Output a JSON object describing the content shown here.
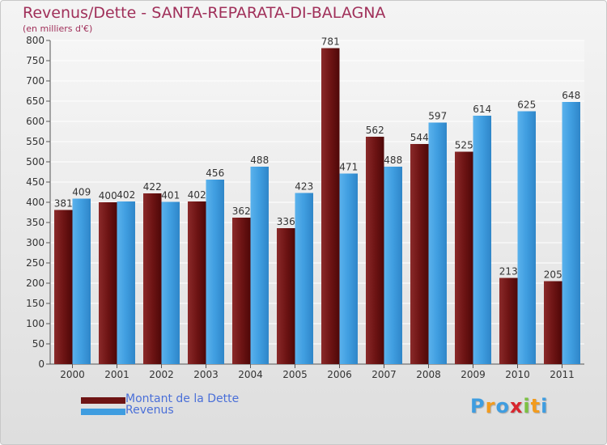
{
  "title": "Revenus/Dette - SANTA-REPARATA-DI-BALAGNA",
  "unit_label": "(en milliers d'€)",
  "colors": {
    "dette": "#6e1414",
    "revenus": "#3f9de0",
    "title": "#a0305a",
    "legend_text": "#4a6fd8"
  },
  "chart_data": {
    "type": "bar",
    "categories": [
      "2000",
      "2001",
      "2002",
      "2003",
      "2004",
      "2005",
      "2006",
      "2007",
      "2008",
      "2009",
      "2010",
      "2011"
    ],
    "series": [
      {
        "name": "Montant de la Dette",
        "values": [
          381,
          400,
          422,
          402,
          362,
          336,
          781,
          562,
          544,
          525,
          213,
          205
        ]
      },
      {
        "name": "Revenus",
        "values": [
          409,
          402,
          401,
          456,
          488,
          423,
          471,
          488,
          597,
          614,
          625,
          648
        ]
      }
    ],
    "title": "Revenus/Dette - SANTA-REPARATA-DI-BALAGNA",
    "ylabel": "(en milliers d'€)",
    "ylim": [
      0,
      800
    ],
    "yticks": [
      0,
      50,
      100,
      150,
      200,
      250,
      300,
      350,
      400,
      450,
      500,
      550,
      600,
      650,
      700,
      750,
      800
    ],
    "grid": true,
    "legend_position": "bottom-left"
  },
  "legend": [
    {
      "label": "Montant de la Dette",
      "color": "#6e1414"
    },
    {
      "label": "Revenus",
      "color": "#3f9de0"
    }
  ],
  "logo": {
    "letters": [
      "P",
      "r",
      "o",
      "x",
      "i",
      "t",
      "i"
    ],
    "colors": [
      "#3f9de0",
      "#f29b1e",
      "#3f9de0",
      "#d8262e",
      "#7cc142",
      "#f29b1e",
      "#3f9de0"
    ]
  }
}
